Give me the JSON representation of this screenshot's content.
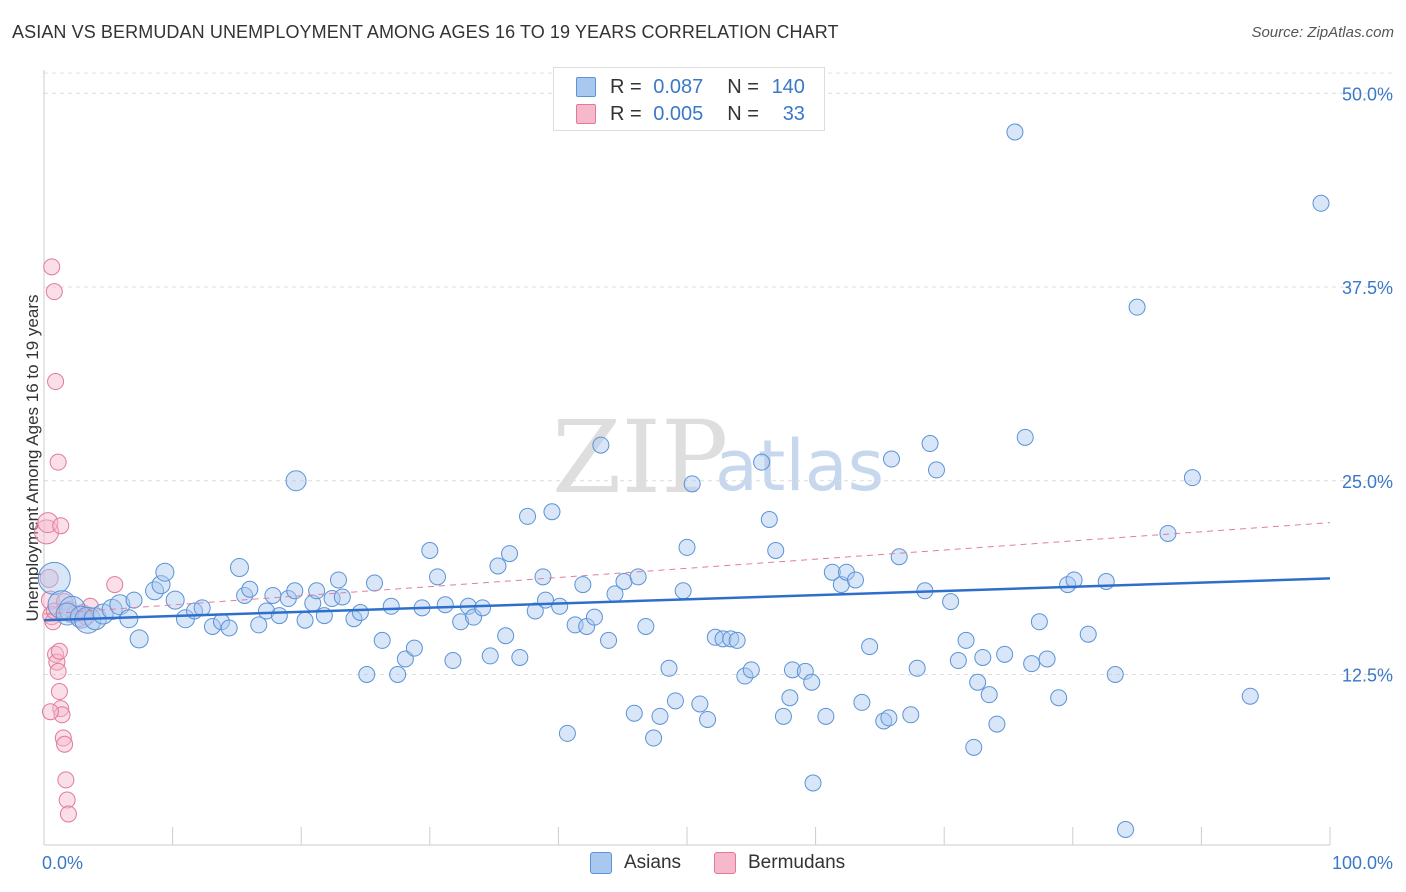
{
  "header": {
    "title": "ASIAN VS BERMUDAN UNEMPLOYMENT AMONG AGES 16 TO 19 YEARS CORRELATION CHART",
    "source": "Source: ZipAtlas.com"
  },
  "watermark": {
    "zip": "ZIP",
    "atlas": "atlas"
  },
  "legend": {
    "rows": [
      {
        "r_label": "R =",
        "r_value": "0.087",
        "n_label": "N =",
        "n_value": "140",
        "color": "#a9c8ef"
      },
      {
        "r_label": "R =",
        "r_value": "0.005",
        "n_label": "N =",
        "n_value": "33",
        "color": "#f6b9cb"
      }
    ]
  },
  "bottom_legend": [
    {
      "label": "Asians",
      "color": "#a9c8ef"
    },
    {
      "label": "Bermudans",
      "color": "#f6b9cb"
    }
  ],
  "chart_data": {
    "type": "scatter",
    "xlabel": "",
    "ylabel": "Unemployment Among Ages 16 to 19 years",
    "xlim": [
      0,
      100
    ],
    "ylim": [
      1.5,
      51.5
    ],
    "x_tick_labels": [
      "0.0%",
      "100.0%"
    ],
    "y_ticks": [
      12.5,
      25.0,
      37.5,
      50.0
    ],
    "y_tick_labels": [
      "12.5%",
      "25.0%",
      "37.5%",
      "50.0%"
    ],
    "grid": true,
    "legend_position": "top-center",
    "colors": {
      "asians_fill": "#a9c8ef",
      "asians_stroke": "#5b93d6",
      "asians_line": "#2f6fcc",
      "bermudans_fill": "#f6b9cb",
      "bermudans_stroke": "#e17a9a",
      "bermudans_line": "#e07f9c"
    },
    "series": [
      {
        "name": "Asians",
        "trend": {
          "x": [
            0,
            100
          ],
          "y": [
            16.0,
            18.7
          ],
          "style": "solid"
        },
        "points": [
          [
            0.8,
            18.7,
            16
          ],
          [
            1.4,
            17.0,
            14
          ],
          [
            2.2,
            16.7,
            13
          ],
          [
            1.8,
            16.4,
            11
          ],
          [
            2.9,
            16.2,
            11
          ],
          [
            3.4,
            16.0,
            13
          ],
          [
            4.0,
            16.1,
            11
          ],
          [
            4.6,
            16.4,
            10
          ],
          [
            5.3,
            16.7,
            10
          ],
          [
            5.9,
            17.0,
            10
          ],
          [
            6.6,
            16.1,
            9
          ],
          [
            7.0,
            17.3,
            8
          ],
          [
            7.4,
            14.8,
            9
          ],
          [
            8.6,
            17.9,
            9
          ],
          [
            9.1,
            18.3,
            9
          ],
          [
            9.4,
            19.1,
            9
          ],
          [
            10.2,
            17.3,
            9
          ],
          [
            11.0,
            16.1,
            9
          ],
          [
            11.7,
            16.6,
            8
          ],
          [
            12.3,
            16.8,
            8
          ],
          [
            13.1,
            15.6,
            8
          ],
          [
            13.8,
            15.9,
            8
          ],
          [
            14.4,
            15.5,
            8
          ],
          [
            15.2,
            19.4,
            9
          ],
          [
            15.6,
            17.6,
            8
          ],
          [
            16.0,
            18.0,
            8
          ],
          [
            16.7,
            15.7,
            8
          ],
          [
            17.3,
            16.6,
            8
          ],
          [
            17.8,
            17.6,
            8
          ],
          [
            18.3,
            16.3,
            8
          ],
          [
            19.0,
            17.4,
            8
          ],
          [
            19.5,
            17.9,
            8
          ],
          [
            19.6,
            25.0,
            10
          ],
          [
            20.3,
            16.0,
            8
          ],
          [
            20.9,
            17.1,
            8
          ],
          [
            21.2,
            17.9,
            8
          ],
          [
            21.8,
            16.3,
            8
          ],
          [
            22.4,
            17.4,
            8
          ],
          [
            22.9,
            18.6,
            8
          ],
          [
            23.2,
            17.5,
            8
          ],
          [
            24.1,
            16.1,
            8
          ],
          [
            24.6,
            16.5,
            8
          ],
          [
            25.1,
            12.5,
            8
          ],
          [
            25.7,
            18.4,
            8
          ],
          [
            26.3,
            14.7,
            8
          ],
          [
            27.0,
            16.9,
            8
          ],
          [
            27.5,
            12.5,
            8
          ],
          [
            28.1,
            13.5,
            8
          ],
          [
            28.8,
            14.2,
            8
          ],
          [
            29.4,
            16.8,
            8
          ],
          [
            30.0,
            20.5,
            8
          ],
          [
            30.6,
            18.8,
            8
          ],
          [
            31.2,
            17.0,
            8
          ],
          [
            31.8,
            13.4,
            8
          ],
          [
            32.4,
            15.9,
            8
          ],
          [
            33.0,
            16.9,
            8
          ],
          [
            33.4,
            16.2,
            8
          ],
          [
            34.1,
            16.8,
            8
          ],
          [
            34.7,
            13.7,
            8
          ],
          [
            35.3,
            19.5,
            8
          ],
          [
            35.9,
            15.0,
            8
          ],
          [
            36.2,
            20.3,
            8
          ],
          [
            37.0,
            13.6,
            8
          ],
          [
            37.6,
            22.7,
            8
          ],
          [
            38.2,
            16.6,
            8
          ],
          [
            38.8,
            18.8,
            8
          ],
          [
            39.0,
            17.3,
            8
          ],
          [
            39.5,
            23.0,
            8
          ],
          [
            40.1,
            16.9,
            8
          ],
          [
            40.7,
            8.7,
            8
          ],
          [
            41.3,
            15.7,
            8
          ],
          [
            41.9,
            18.3,
            8
          ],
          [
            42.2,
            15.6,
            8
          ],
          [
            42.8,
            16.2,
            8
          ],
          [
            43.3,
            27.3,
            8
          ],
          [
            43.9,
            14.7,
            8
          ],
          [
            44.4,
            17.7,
            8
          ],
          [
            45.1,
            18.5,
            8
          ],
          [
            45.9,
            10.0,
            8
          ],
          [
            46.2,
            18.8,
            8
          ],
          [
            46.8,
            15.6,
            8
          ],
          [
            47.4,
            8.4,
            8
          ],
          [
            47.9,
            9.8,
            8
          ],
          [
            48.6,
            12.9,
            8
          ],
          [
            49.1,
            10.8,
            8
          ],
          [
            49.7,
            17.9,
            8
          ],
          [
            50.0,
            20.7,
            8
          ],
          [
            50.4,
            24.8,
            8
          ],
          [
            51.0,
            10.6,
            8
          ],
          [
            51.6,
            9.6,
            8
          ],
          [
            52.2,
            14.9,
            8
          ],
          [
            52.8,
            14.8,
            8
          ],
          [
            53.4,
            14.8,
            8
          ],
          [
            53.9,
            14.7,
            8
          ],
          [
            54.5,
            12.4,
            8
          ],
          [
            55.0,
            12.8,
            8
          ],
          [
            55.8,
            26.2,
            8
          ],
          [
            56.4,
            22.5,
            8
          ],
          [
            56.9,
            20.5,
            8
          ],
          [
            57.5,
            9.8,
            8
          ],
          [
            58.0,
            11.0,
            8
          ],
          [
            58.2,
            12.8,
            8
          ],
          [
            59.2,
            12.7,
            8
          ],
          [
            59.7,
            12.0,
            8
          ],
          [
            59.8,
            5.5,
            8
          ],
          [
            60.8,
            9.8,
            8
          ],
          [
            61.3,
            19.1,
            8
          ],
          [
            62.0,
            18.3,
            8
          ],
          [
            62.4,
            19.1,
            8
          ],
          [
            63.1,
            18.6,
            8
          ],
          [
            63.6,
            10.7,
            8
          ],
          [
            64.2,
            14.3,
            8
          ],
          [
            65.3,
            9.5,
            8
          ],
          [
            65.7,
            9.7,
            8
          ],
          [
            65.9,
            26.4,
            8
          ],
          [
            66.5,
            20.1,
            8
          ],
          [
            67.4,
            9.9,
            8
          ],
          [
            67.9,
            12.9,
            8
          ],
          [
            68.5,
            17.9,
            8
          ],
          [
            68.9,
            27.4,
            8
          ],
          [
            69.4,
            25.7,
            8
          ],
          [
            70.5,
            17.2,
            8
          ],
          [
            71.1,
            13.4,
            8
          ],
          [
            71.7,
            14.7,
            8
          ],
          [
            72.3,
            7.8,
            8
          ],
          [
            72.6,
            12.0,
            8
          ],
          [
            73.0,
            13.6,
            8
          ],
          [
            73.5,
            11.2,
            8
          ],
          [
            74.1,
            9.3,
            8
          ],
          [
            74.7,
            13.8,
            8
          ],
          [
            75.5,
            47.5,
            8
          ],
          [
            76.3,
            27.8,
            8
          ],
          [
            76.8,
            13.2,
            8
          ],
          [
            77.4,
            15.9,
            8
          ],
          [
            78.0,
            13.5,
            8
          ],
          [
            78.9,
            11.0,
            8
          ],
          [
            79.6,
            18.3,
            8
          ],
          [
            80.1,
            18.6,
            8
          ],
          [
            81.2,
            15.1,
            8
          ],
          [
            82.6,
            18.5,
            8
          ],
          [
            83.3,
            12.5,
            8
          ],
          [
            84.1,
            2.5,
            8
          ],
          [
            85.0,
            36.2,
            8
          ],
          [
            87.4,
            21.6,
            8
          ],
          [
            89.3,
            25.2,
            8
          ],
          [
            93.8,
            11.1,
            8
          ],
          [
            99.3,
            42.9,
            8
          ]
        ]
      },
      {
        "name": "Bermudans",
        "trend": {
          "x": [
            0,
            100
          ],
          "y": [
            16.4,
            22.3
          ],
          "style": "dashed"
        },
        "points": [
          [
            0.2,
            21.7,
            12
          ],
          [
            0.3,
            22.3,
            10
          ],
          [
            0.4,
            18.7,
            9
          ],
          [
            0.5,
            17.3,
            9
          ],
          [
            0.6,
            16.3,
            9
          ],
          [
            0.7,
            15.9,
            8
          ],
          [
            0.8,
            16.6,
            8
          ],
          [
            0.9,
            13.8,
            8
          ],
          [
            1.0,
            13.3,
            8
          ],
          [
            1.1,
            12.7,
            8
          ],
          [
            1.2,
            11.4,
            8
          ],
          [
            1.3,
            10.3,
            8
          ],
          [
            1.4,
            9.9,
            8
          ],
          [
            1.5,
            8.4,
            8
          ],
          [
            1.6,
            8.0,
            8
          ],
          [
            1.7,
            5.7,
            8
          ],
          [
            1.8,
            4.4,
            8
          ],
          [
            1.9,
            3.5,
            8
          ],
          [
            0.6,
            38.8,
            8
          ],
          [
            0.8,
            37.2,
            8
          ],
          [
            0.9,
            31.4,
            8
          ],
          [
            1.1,
            26.2,
            8
          ],
          [
            1.3,
            22.1,
            8
          ],
          [
            1.6,
            17.2,
            8
          ],
          [
            2.0,
            16.7,
            8
          ],
          [
            2.4,
            16.4,
            8
          ],
          [
            2.7,
            16.1,
            8
          ],
          [
            3.0,
            16.5,
            8
          ],
          [
            3.3,
            16.2,
            8
          ],
          [
            3.6,
            16.9,
            8
          ],
          [
            5.5,
            18.3,
            8
          ],
          [
            1.2,
            14.0,
            8
          ],
          [
            0.5,
            10.1,
            8
          ]
        ]
      }
    ]
  }
}
